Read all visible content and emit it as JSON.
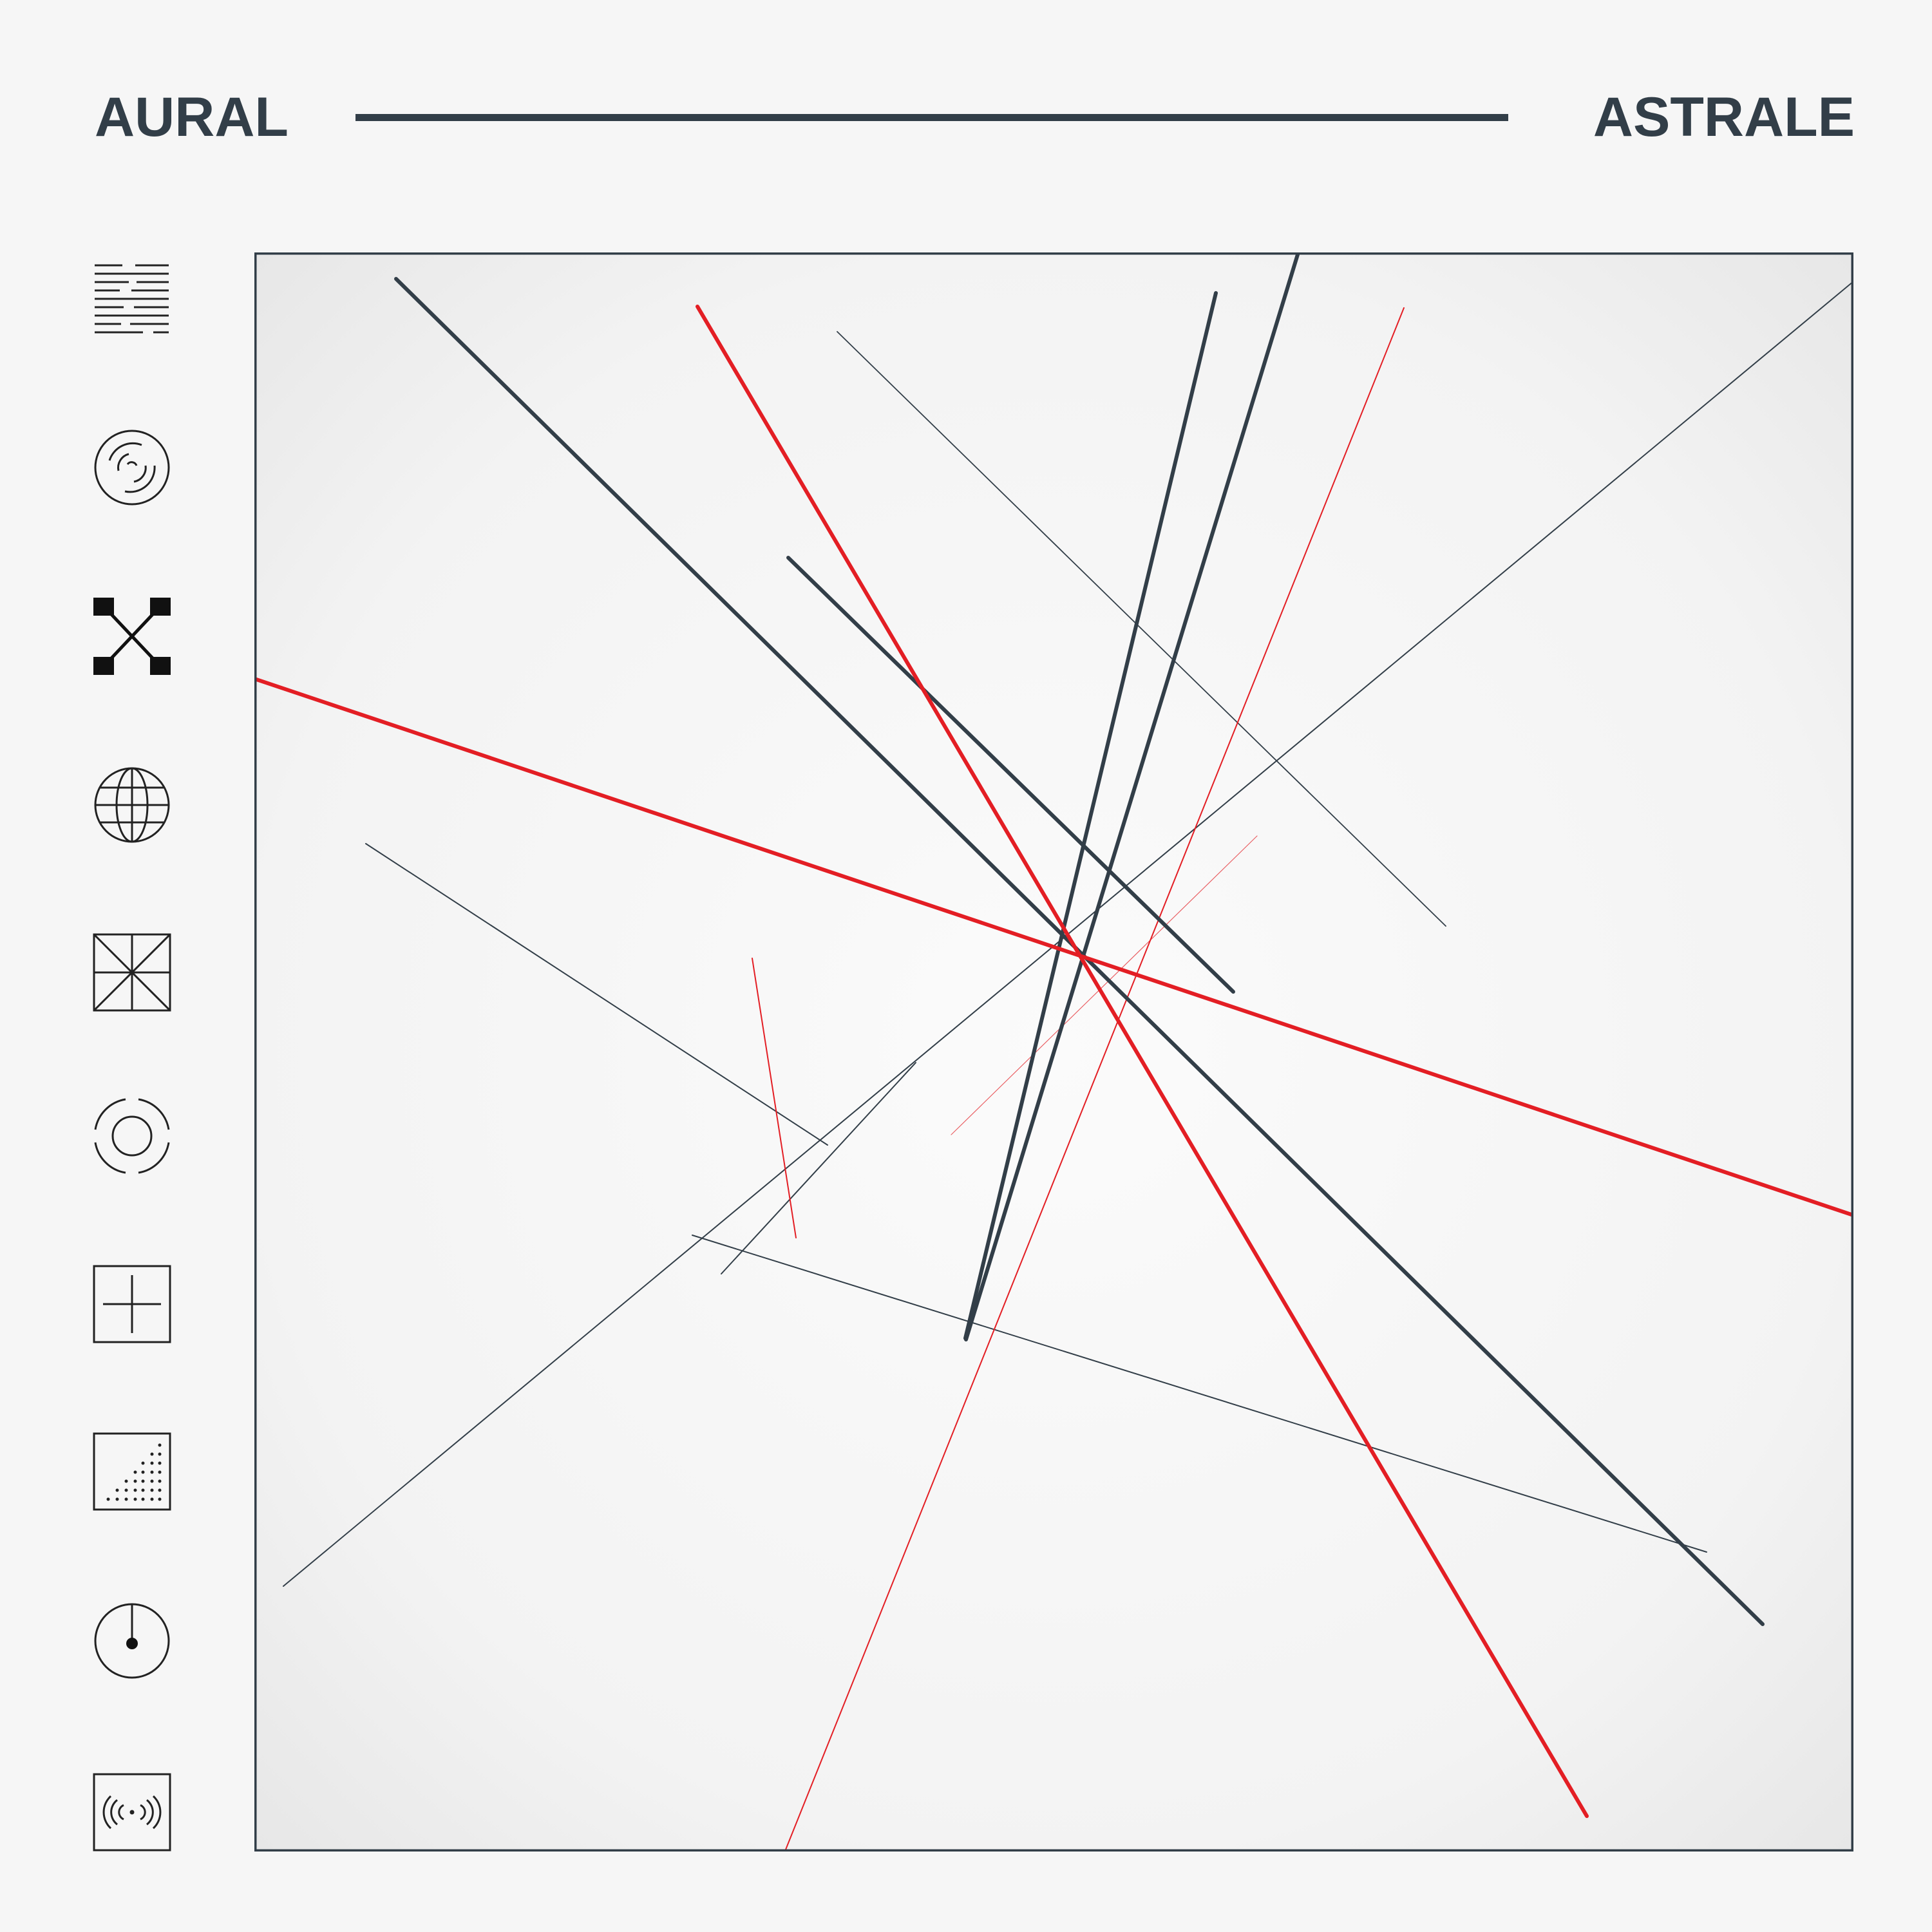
{
  "header": {
    "left_title": "AURAL",
    "right_title": "ASTRALE"
  },
  "icons": [
    "stacked-dashes-icon",
    "concentric-arcs-icon",
    "cross-connect-icon",
    "globe-icon",
    "octant-square-icon",
    "target-ring-icon",
    "plus-square-icon",
    "dotted-triangle-square-icon",
    "dial-icon",
    "broadcast-icon"
  ],
  "colors": {
    "ink": "#323e48",
    "accent": "#e31e24",
    "background": "#f6f6f6"
  }
}
